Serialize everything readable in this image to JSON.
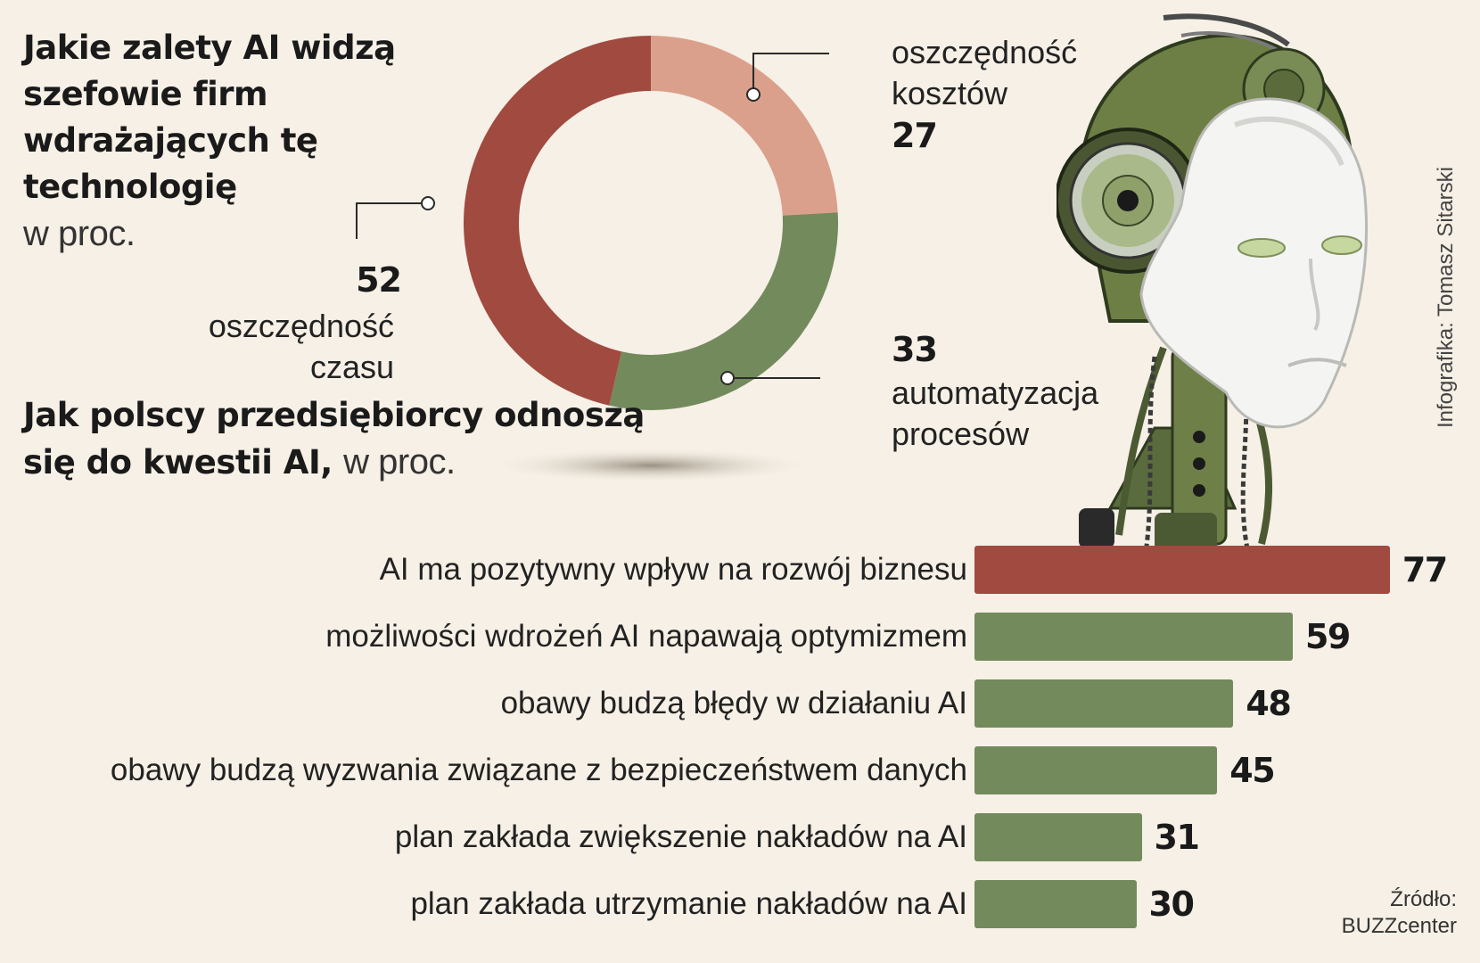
{
  "title1": {
    "bold": "Jakie zalety AI widzą szefowie firm wdrażających tę technologię",
    "unit": "w proc."
  },
  "title2": {
    "bold": "Jak polscy przedsiębiorcy odnoszą się do kwestii AI,",
    "unit": "w proc."
  },
  "donut_labels": {
    "left": {
      "value": "52",
      "label": "oszczędność czasu"
    },
    "top_right": {
      "value": "27",
      "label": "oszczędność kosztów"
    },
    "bottom_right": {
      "value": "33",
      "label": "automatyzacja procesów"
    }
  },
  "bar_values_text": [
    "77",
    "59",
    "48",
    "45",
    "31",
    "30"
  ],
  "chart_data": [
    {
      "type": "pie",
      "categories": [
        "oszczędność kosztów",
        "automatyzacja procesów",
        "oszczędność czasu"
      ],
      "values": [
        27,
        33,
        52
      ],
      "colors": [
        "#dba08c",
        "#738a5c",
        "#a14a40"
      ]
    },
    {
      "type": "bar",
      "categories": [
        "AI ma pozytywny wpływ na rozwój biznesu",
        "możliwości wdrożeń AI napawają optymizmem",
        "obawy budzą błędy w działaniu AI",
        "obawy budzą wyzwania związane z bezpieczeństwem danych",
        "plan zakłada zwiększenie nakładów na AI",
        "plan zakłada utrzymanie nakładów na AI"
      ],
      "values": [
        77,
        59,
        48,
        45,
        31,
        30
      ],
      "highlight_color": "#a14a40",
      "bar_color": "#738a5c"
    }
  ],
  "credit": "Infografika: Tomasz Sitarski",
  "source": {
    "line1": "Źródło:",
    "line2": "BUZZcenter"
  },
  "image": {
    "icon": "robot-head-illustration"
  }
}
